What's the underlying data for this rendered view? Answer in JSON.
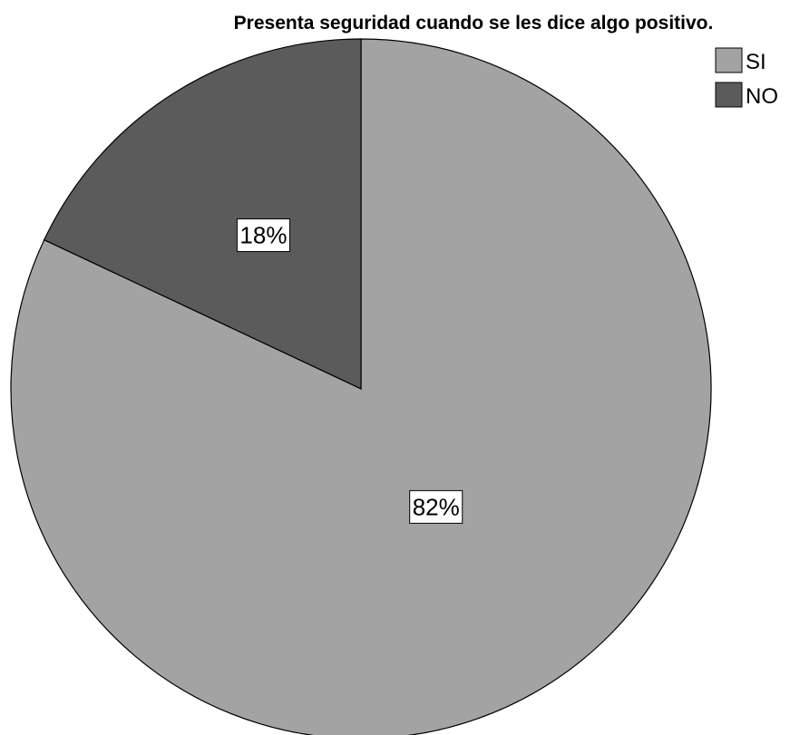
{
  "chart_data": {
    "type": "pie",
    "title": "Presenta seguridad cuando se les dice algo positivo.",
    "categories": [
      "SI",
      "NO"
    ],
    "values": [
      82,
      18
    ],
    "data_labels": [
      "82%",
      "18%"
    ],
    "colors": [
      "#a3a3a3",
      "#5b5b5b"
    ],
    "legend": {
      "position": "top-right",
      "entries": [
        "SI",
        "NO"
      ]
    }
  }
}
